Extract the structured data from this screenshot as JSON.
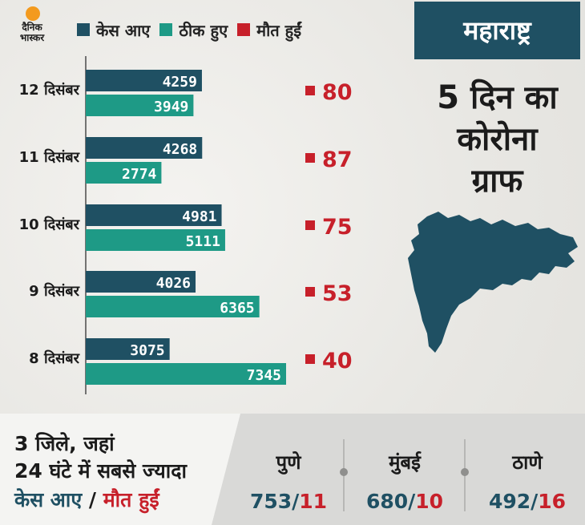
{
  "brand": {
    "logo_text": "दैनिक भास्कर"
  },
  "legend": [
    {
      "label": "केस आए",
      "color": "#1f5063"
    },
    {
      "label": "ठीक हुए",
      "color": "#1e9a86"
    },
    {
      "label": "मौत हुईं",
      "color": "#c7202a"
    }
  ],
  "state": "महाराष्ट्र",
  "graph_title": [
    "5 दिन का",
    "कोरोना",
    "ग्राफ"
  ],
  "chart_data": {
    "type": "bar",
    "orientation": "horizontal",
    "categories": [
      "12 दिसंबर",
      "11 दिसंबर",
      "10 दिसंबर",
      "9 दिसंबर",
      "8 दिसंबर"
    ],
    "series": [
      {
        "name": "केस आए",
        "values": [
          4259,
          4268,
          4981,
          4026,
          3075
        ],
        "color": "#1f5063"
      },
      {
        "name": "ठीक हुए",
        "values": [
          3949,
          2774,
          5111,
          6365,
          7345
        ],
        "color": "#1e9a86"
      },
      {
        "name": "मौत हुईं",
        "values": [
          80,
          87,
          75,
          53,
          40
        ],
        "color": "#c7202a"
      }
    ],
    "legend_position": "top"
  },
  "bottom": {
    "line1": "3 जिले, जहां",
    "line2": "24 घंटे में सबसे ज्यादा",
    "cases_label": "केस आए",
    "separator": " / ",
    "deaths_label": "मौत हुईं",
    "cities": [
      {
        "name": "पुणे",
        "cases": "753",
        "deaths": "11"
      },
      {
        "name": "मुंबई",
        "cases": "680",
        "deaths": "10"
      },
      {
        "name": "ठाणे",
        "cases": "492",
        "deaths": "16"
      }
    ]
  }
}
